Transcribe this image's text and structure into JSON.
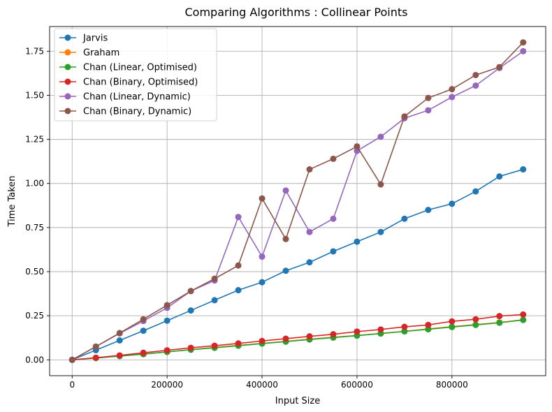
{
  "chart_data": {
    "type": "line",
    "title": "Comparing Algorithms : Collinear Points",
    "xlabel": "Input Size",
    "ylabel": "Time Taken",
    "xlim": [
      -47500,
      997500
    ],
    "ylim": [
      -0.09,
      1.89
    ],
    "x_ticks": [
      0,
      200000,
      400000,
      600000,
      800000
    ],
    "x_tick_labels": [
      "0",
      "200000",
      "400000",
      "600000",
      "800000"
    ],
    "y_ticks": [
      0,
      0.25,
      0.5,
      0.75,
      1.0,
      1.25,
      1.5,
      1.75
    ],
    "y_tick_labels": [
      "0.00",
      "0.25",
      "0.50",
      "0.75",
      "1.00",
      "1.25",
      "1.50",
      "1.75"
    ],
    "grid": true,
    "legend_position": "top-left",
    "x": [
      0,
      50000,
      100000,
      150000,
      200000,
      250000,
      300000,
      350000,
      400000,
      450000,
      500000,
      550000,
      600000,
      650000,
      700000,
      750000,
      800000,
      850000,
      900000,
      950000
    ],
    "series": [
      {
        "name": "Jarvis",
        "color": "#1f77b4",
        "values": [
          0,
          0.055,
          0.11,
          0.165,
          0.222,
          0.28,
          0.338,
          0.395,
          0.44,
          0.505,
          0.553,
          0.615,
          0.67,
          0.725,
          0.8,
          0.85,
          0.885,
          0.955,
          1.04,
          1.08
        ]
      },
      {
        "name": "Graham",
        "color": "#ff7f0e",
        "values": [
          0,
          0.01,
          0.022,
          0.033,
          0.045,
          0.058,
          0.07,
          0.082,
          0.093,
          0.105,
          0.117,
          0.128,
          0.138,
          0.15,
          0.162,
          0.175,
          0.188,
          0.2,
          0.212,
          0.227
        ]
      },
      {
        "name": "Chan (Linear, Optimised)",
        "color": "#2ca02c",
        "values": [
          0,
          0.01,
          0.021,
          0.032,
          0.045,
          0.057,
          0.068,
          0.08,
          0.092,
          0.103,
          0.115,
          0.126,
          0.137,
          0.149,
          0.161,
          0.173,
          0.186,
          0.198,
          0.21,
          0.226
        ]
      },
      {
        "name": "Chan (Binary, Optimised)",
        "color": "#d62728",
        "values": [
          0,
          0.012,
          0.025,
          0.04,
          0.054,
          0.068,
          0.08,
          0.093,
          0.107,
          0.12,
          0.133,
          0.145,
          0.16,
          0.172,
          0.187,
          0.198,
          0.218,
          0.23,
          0.248,
          0.257
        ]
      },
      {
        "name": "Chan (Linear, Dynamic)",
        "color": "#9467bd",
        "values": [
          0,
          0.075,
          0.15,
          0.22,
          0.295,
          0.39,
          0.45,
          0.81,
          0.585,
          0.96,
          0.725,
          0.8,
          1.185,
          1.265,
          1.37,
          1.415,
          1.49,
          1.555,
          1.655,
          1.75
        ]
      },
      {
        "name": "Chan (Binary, Dynamic)",
        "color": "#8c564b",
        "values": [
          0,
          0.075,
          0.152,
          0.23,
          0.31,
          0.39,
          0.46,
          0.535,
          0.915,
          0.685,
          1.08,
          1.14,
          1.21,
          0.995,
          1.38,
          1.485,
          1.535,
          1.615,
          1.66,
          1.8
        ]
      }
    ]
  }
}
